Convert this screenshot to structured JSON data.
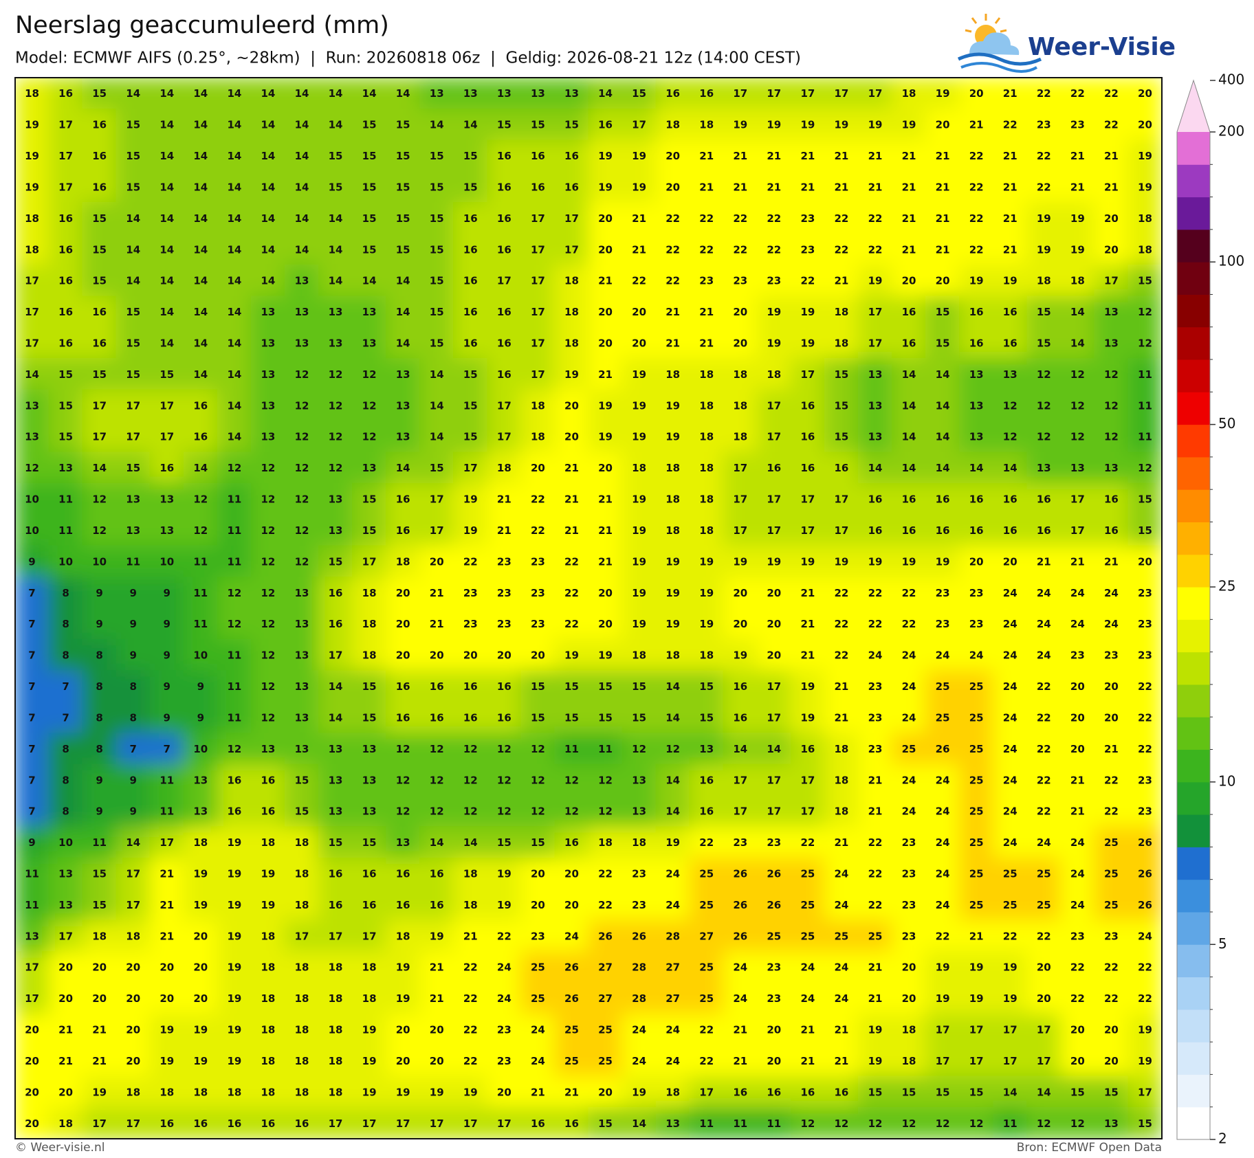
{
  "header": {
    "title": "Neerslag geaccumuleerd (mm)",
    "subtitle": "Model: ECMWF AIFS (0.25°, ~28km)  |  Run: 20260818 06z  |  Geldig: 2026-08-21 12z (14:00 CEST)",
    "logo": "Weer-Visie"
  },
  "grid": {
    "rows": [
      [
        18,
        16,
        15,
        14,
        14,
        14,
        14,
        14,
        14,
        14,
        14,
        14,
        13,
        13,
        13,
        13,
        13,
        14,
        15,
        16,
        16,
        17,
        17,
        17,
        17,
        17,
        18,
        19,
        20,
        21,
        22,
        22,
        22,
        20
      ],
      [
        19,
        17,
        16,
        15,
        14,
        14,
        14,
        14,
        14,
        14,
        15,
        15,
        14,
        14,
        15,
        15,
        15,
        16,
        17,
        18,
        18,
        19,
        19,
        19,
        19,
        19,
        19,
        20,
        21,
        22,
        23,
        23,
        22,
        20
      ],
      [
        19,
        17,
        16,
        15,
        14,
        14,
        14,
        14,
        14,
        15,
        15,
        15,
        15,
        15,
        16,
        16,
        16,
        19,
        19,
        20,
        21,
        21,
        21,
        21,
        21,
        21,
        21,
        21,
        22,
        21,
        22,
        21,
        21,
        19
      ],
      [
        19,
        17,
        16,
        15,
        14,
        14,
        14,
        14,
        14,
        15,
        15,
        15,
        15,
        15,
        16,
        16,
        16,
        19,
        19,
        20,
        21,
        21,
        21,
        21,
        21,
        21,
        21,
        21,
        22,
        21,
        22,
        21,
        21,
        19
      ],
      [
        18,
        16,
        15,
        14,
        14,
        14,
        14,
        14,
        14,
        14,
        15,
        15,
        15,
        16,
        16,
        17,
        17,
        20,
        21,
        22,
        22,
        22,
        22,
        23,
        22,
        22,
        21,
        21,
        22,
        21,
        19,
        19,
        20,
        18
      ],
      [
        18,
        16,
        15,
        14,
        14,
        14,
        14,
        14,
        14,
        14,
        15,
        15,
        15,
        16,
        16,
        17,
        17,
        20,
        21,
        22,
        22,
        22,
        22,
        23,
        22,
        22,
        21,
        21,
        22,
        21,
        19,
        19,
        20,
        18
      ],
      [
        17,
        16,
        15,
        14,
        14,
        14,
        14,
        14,
        13,
        14,
        14,
        14,
        15,
        16,
        17,
        17,
        18,
        21,
        22,
        22,
        23,
        23,
        23,
        22,
        21,
        19,
        20,
        20,
        19,
        19,
        18,
        18,
        17,
        15
      ],
      [
        17,
        16,
        16,
        15,
        14,
        14,
        14,
        13,
        13,
        13,
        13,
        14,
        15,
        16,
        16,
        17,
        18,
        20,
        20,
        21,
        21,
        20,
        19,
        19,
        18,
        17,
        16,
        15,
        16,
        16,
        15,
        14,
        13,
        12
      ],
      [
        17,
        16,
        16,
        15,
        14,
        14,
        14,
        13,
        13,
        13,
        13,
        14,
        15,
        16,
        16,
        17,
        18,
        20,
        20,
        21,
        21,
        20,
        19,
        19,
        18,
        17,
        16,
        15,
        16,
        16,
        15,
        14,
        13,
        12
      ],
      [
        14,
        15,
        15,
        15,
        15,
        14,
        14,
        13,
        12,
        12,
        12,
        13,
        14,
        15,
        16,
        17,
        19,
        21,
        19,
        18,
        18,
        18,
        18,
        17,
        15,
        13,
        14,
        14,
        13,
        13,
        12,
        12,
        12,
        11
      ],
      [
        13,
        15,
        17,
        17,
        17,
        16,
        14,
        13,
        12,
        12,
        12,
        13,
        14,
        15,
        17,
        18,
        20,
        19,
        19,
        19,
        18,
        18,
        17,
        16,
        15,
        13,
        14,
        14,
        13,
        12,
        12,
        12,
        12,
        11
      ],
      [
        13,
        15,
        17,
        17,
        17,
        16,
        14,
        13,
        12,
        12,
        12,
        13,
        14,
        15,
        17,
        18,
        20,
        19,
        19,
        19,
        18,
        18,
        17,
        16,
        15,
        13,
        14,
        14,
        13,
        12,
        12,
        12,
        12,
        11
      ],
      [
        12,
        13,
        14,
        15,
        16,
        14,
        12,
        12,
        12,
        12,
        13,
        14,
        15,
        17,
        18,
        20,
        21,
        20,
        18,
        18,
        18,
        17,
        16,
        16,
        16,
        14,
        14,
        14,
        14,
        14,
        13,
        13,
        13,
        12
      ],
      [
        10,
        11,
        12,
        13,
        13,
        12,
        11,
        12,
        12,
        13,
        15,
        16,
        17,
        19,
        21,
        22,
        21,
        21,
        19,
        18,
        18,
        17,
        17,
        17,
        17,
        16,
        16,
        16,
        16,
        16,
        16,
        17,
        16,
        15
      ],
      [
        10,
        11,
        12,
        13,
        13,
        12,
        11,
        12,
        12,
        13,
        15,
        16,
        17,
        19,
        21,
        22,
        21,
        21,
        19,
        18,
        18,
        17,
        17,
        17,
        17,
        16,
        16,
        16,
        16,
        16,
        16,
        17,
        16,
        15
      ],
      [
        9,
        10,
        10,
        11,
        10,
        11,
        11,
        12,
        12,
        15,
        17,
        18,
        20,
        22,
        23,
        23,
        22,
        21,
        19,
        19,
        19,
        19,
        19,
        19,
        19,
        19,
        19,
        19,
        20,
        20,
        21,
        21,
        21,
        20
      ],
      [
        7,
        8,
        9,
        9,
        9,
        11,
        12,
        12,
        13,
        16,
        18,
        20,
        21,
        23,
        23,
        23,
        22,
        20,
        19,
        19,
        19,
        20,
        20,
        21,
        22,
        22,
        22,
        23,
        23,
        24,
        24,
        24,
        24,
        23
      ],
      [
        7,
        8,
        9,
        9,
        9,
        11,
        12,
        12,
        13,
        16,
        18,
        20,
        21,
        23,
        23,
        23,
        22,
        20,
        19,
        19,
        19,
        20,
        20,
        21,
        22,
        22,
        22,
        23,
        23,
        24,
        24,
        24,
        24,
        23
      ],
      [
        7,
        8,
        8,
        9,
        9,
        10,
        11,
        12,
        13,
        17,
        18,
        20,
        20,
        20,
        20,
        20,
        19,
        19,
        18,
        18,
        18,
        19,
        20,
        21,
        22,
        24,
        24,
        24,
        24,
        24,
        24,
        23,
        23,
        23
      ],
      [
        7,
        7,
        8,
        8,
        9,
        9,
        11,
        12,
        13,
        14,
        15,
        16,
        16,
        16,
        16,
        15,
        15,
        15,
        15,
        14,
        15,
        16,
        17,
        19,
        21,
        23,
        24,
        25,
        25,
        24,
        22,
        20,
        20,
        22
      ],
      [
        7,
        7,
        8,
        8,
        9,
        9,
        11,
        12,
        13,
        14,
        15,
        16,
        16,
        16,
        16,
        15,
        15,
        15,
        15,
        14,
        15,
        16,
        17,
        19,
        21,
        23,
        24,
        25,
        25,
        24,
        22,
        20,
        20,
        22
      ],
      [
        7,
        8,
        8,
        7,
        7,
        10,
        12,
        13,
        13,
        13,
        13,
        12,
        12,
        12,
        12,
        12,
        11,
        11,
        12,
        12,
        13,
        14,
        14,
        16,
        18,
        23,
        25,
        26,
        25,
        24,
        22,
        20,
        21,
        22
      ],
      [
        7,
        8,
        9,
        9,
        11,
        13,
        16,
        16,
        15,
        13,
        13,
        12,
        12,
        12,
        12,
        12,
        12,
        12,
        13,
        14,
        16,
        17,
        17,
        17,
        18,
        21,
        24,
        24,
        25,
        24,
        22,
        21,
        22,
        23
      ],
      [
        7,
        8,
        9,
        9,
        11,
        13,
        16,
        16,
        15,
        13,
        13,
        12,
        12,
        12,
        12,
        12,
        12,
        12,
        13,
        14,
        16,
        17,
        17,
        17,
        18,
        21,
        24,
        24,
        25,
        24,
        22,
        21,
        22,
        23
      ],
      [
        9,
        10,
        11,
        14,
        17,
        18,
        19,
        18,
        18,
        15,
        15,
        13,
        14,
        14,
        15,
        15,
        16,
        18,
        18,
        19,
        22,
        23,
        23,
        22,
        21,
        22,
        23,
        24,
        25,
        24,
        24,
        24,
        25,
        26
      ],
      [
        11,
        13,
        15,
        17,
        21,
        19,
        19,
        19,
        18,
        16,
        16,
        16,
        16,
        18,
        19,
        20,
        20,
        22,
        23,
        24,
        25,
        26,
        26,
        25,
        24,
        22,
        23,
        24,
        25,
        25,
        25,
        24,
        25,
        26
      ],
      [
        11,
        13,
        15,
        17,
        21,
        19,
        19,
        19,
        18,
        16,
        16,
        16,
        16,
        18,
        19,
        20,
        20,
        22,
        23,
        24,
        25,
        26,
        26,
        25,
        24,
        22,
        23,
        24,
        25,
        25,
        25,
        24,
        25,
        26
      ],
      [
        13,
        17,
        18,
        18,
        21,
        20,
        19,
        18,
        17,
        17,
        17,
        18,
        19,
        21,
        22,
        23,
        24,
        26,
        26,
        28,
        27,
        26,
        25,
        25,
        25,
        25,
        23,
        22,
        21,
        22,
        22,
        23,
        23,
        24
      ],
      [
        17,
        20,
        20,
        20,
        20,
        20,
        19,
        18,
        18,
        18,
        18,
        19,
        21,
        22,
        24,
        25,
        26,
        27,
        28,
        27,
        25,
        24,
        23,
        24,
        24,
        21,
        20,
        19,
        19,
        19,
        20,
        22,
        22,
        22
      ],
      [
        17,
        20,
        20,
        20,
        20,
        20,
        19,
        18,
        18,
        18,
        18,
        19,
        21,
        22,
        24,
        25,
        26,
        27,
        28,
        27,
        25,
        24,
        23,
        24,
        24,
        21,
        20,
        19,
        19,
        19,
        20,
        22,
        22,
        22
      ],
      [
        20,
        21,
        21,
        20,
        19,
        19,
        19,
        18,
        18,
        18,
        19,
        20,
        20,
        22,
        23,
        24,
        25,
        25,
        24,
        24,
        22,
        21,
        20,
        21,
        21,
        19,
        18,
        17,
        17,
        17,
        17,
        20,
        20,
        19
      ],
      [
        20,
        21,
        21,
        20,
        19,
        19,
        19,
        18,
        18,
        18,
        19,
        20,
        20,
        22,
        23,
        24,
        25,
        25,
        24,
        24,
        22,
        21,
        20,
        21,
        21,
        19,
        18,
        17,
        17,
        17,
        17,
        20,
        20,
        19
      ],
      [
        20,
        20,
        19,
        18,
        18,
        18,
        18,
        18,
        18,
        18,
        19,
        19,
        19,
        19,
        20,
        21,
        21,
        20,
        19,
        18,
        17,
        16,
        16,
        16,
        16,
        15,
        15,
        15,
        15,
        14,
        14,
        15,
        15,
        17
      ],
      [
        20,
        18,
        17,
        17,
        16,
        16,
        16,
        16,
        16,
        17,
        17,
        17,
        17,
        17,
        17,
        16,
        16,
        15,
        14,
        13,
        11,
        11,
        11,
        12,
        12,
        12,
        12,
        12,
        12,
        11,
        12,
        12,
        13,
        15
      ]
    ]
  },
  "colorbar": {
    "bounds": [
      2,
      2.5,
      3,
      3.5,
      4,
      4.5,
      5,
      6,
      7,
      8,
      9,
      10,
      12,
      14,
      16,
      18,
      20,
      25,
      30,
      35,
      40,
      45,
      50,
      60,
      70,
      80,
      90,
      100,
      125,
      150,
      175,
      200
    ],
    "colors": [
      "#ffffff",
      "#eaf3fc",
      "#d6e9fa",
      "#c2dff8",
      "#a9d2f5",
      "#86bdee",
      "#5fa6e6",
      "#3b8fdd",
      "#1f6fd0",
      "#12913a",
      "#25a52a",
      "#3cb41e",
      "#62c214",
      "#8fcf0c",
      "#bde200",
      "#e6f200",
      "#ffff00",
      "#ffd200",
      "#ffb000",
      "#ff8c00",
      "#ff6400",
      "#ff3a00",
      "#ee0000",
      "#cc0000",
      "#aa0000",
      "#880000",
      "#700010",
      "#55001d",
      "#6a1a9a",
      "#9c3ac0",
      "#e36fd6"
    ],
    "extend_color": "#fbd8f0",
    "ticks": [
      2,
      5,
      10,
      25,
      50,
      100,
      200,
      400
    ]
  },
  "footer": {
    "left": "© Weer-visie.nl",
    "right": "Bron: ECMWF Open Data"
  }
}
